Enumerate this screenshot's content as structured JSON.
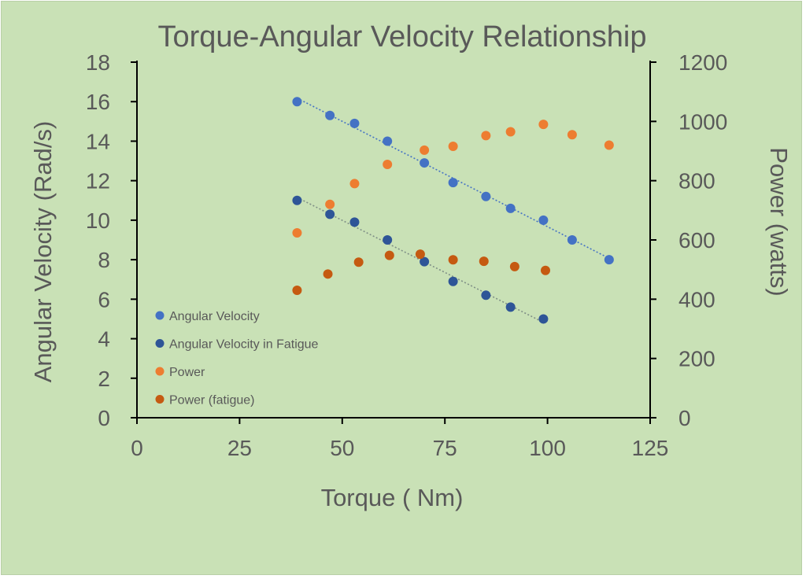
{
  "chart_data": {
    "type": "scatter",
    "title": "Torque-Angular Velocity Relationship",
    "xlabel": "Torque ( Nm)",
    "ylabel": "Angular Velocity (Rad/s)",
    "y2label": "Power (watts)",
    "xlim": [
      0,
      125
    ],
    "ylim": [
      0,
      18
    ],
    "y2lim": [
      0,
      1200
    ],
    "x_ticks": [
      "0",
      "25",
      "50",
      "75",
      "100",
      "125"
    ],
    "y_ticks": [
      "0",
      "2",
      "4",
      "6",
      "8",
      "10",
      "12",
      "14",
      "16",
      "18"
    ],
    "y2_ticks": [
      "0",
      "200",
      "400",
      "600",
      "800",
      "1000",
      "1200"
    ],
    "grid": false,
    "legend_position": "lower-left",
    "series": [
      {
        "name": "Angular Velocity",
        "axis": "left",
        "color": "#4472c4",
        "trendline": true,
        "x": [
          39,
          47,
          53,
          61,
          70,
          77,
          85,
          91,
          99,
          106,
          115
        ],
        "y": [
          16,
          15.3,
          14.9,
          14,
          12.9,
          11.9,
          11.2,
          10.6,
          10,
          9,
          8
        ]
      },
      {
        "name": "Angular Velocity in Fatigue",
        "axis": "left",
        "color": "#2e5597",
        "trendline": true,
        "x": [
          39,
          47,
          53,
          61,
          70,
          77,
          85,
          91,
          99
        ],
        "y": [
          11,
          10.3,
          9.9,
          9,
          7.9,
          6.9,
          6.2,
          5.6,
          5
        ]
      },
      {
        "name": "Power",
        "axis": "right",
        "color": "#ed7d31",
        "trendline": false,
        "x": [
          39,
          47,
          53,
          61,
          70,
          77,
          85,
          91,
          99,
          106,
          115
        ],
        "y": [
          624,
          720,
          790,
          855,
          903,
          916,
          952,
          965,
          990,
          955,
          920
        ]
      },
      {
        "name": "Power (fatigue)",
        "axis": "right",
        "color": "#c55a11",
        "trendline": false,
        "x": [
          39,
          46.5,
          54,
          61.5,
          69,
          77,
          84.5,
          92,
          99.5
        ],
        "y": [
          430,
          485,
          525,
          548,
          552,
          533,
          528,
          510,
          497
        ]
      }
    ]
  }
}
